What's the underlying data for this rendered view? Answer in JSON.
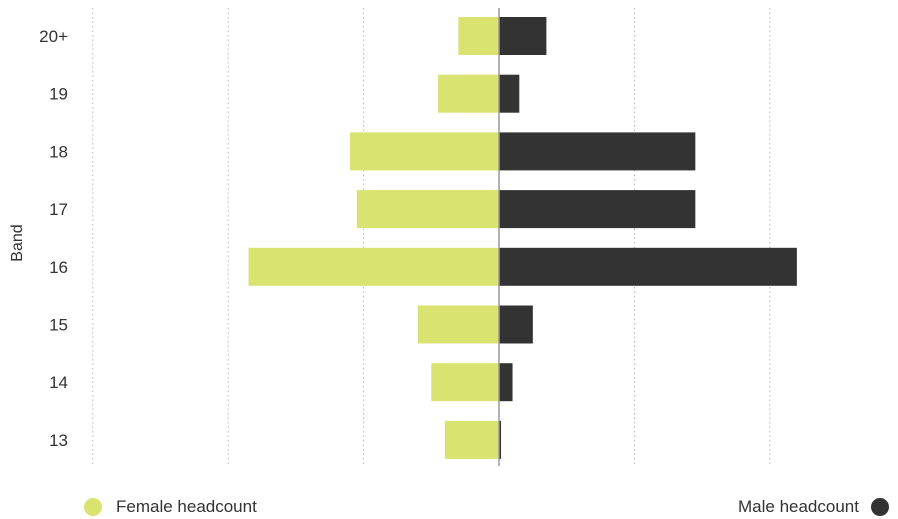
{
  "chart_data": {
    "type": "bar",
    "orientation": "horizontal-diverging",
    "categories": [
      "20+",
      "19",
      "18",
      "17",
      "16",
      "15",
      "14",
      "13"
    ],
    "series": [
      {
        "name": "Female headcount",
        "values": [
          6,
          9,
          22,
          21,
          37,
          12,
          10,
          8
        ],
        "color": "#d9e36f"
      },
      {
        "name": "Male headcount",
        "values": [
          7,
          3,
          29,
          29,
          44,
          5,
          2,
          0.3
        ],
        "color": "#333333"
      }
    ],
    "ylabel": "Band",
    "xlim": [
      -60,
      60
    ],
    "grid": true,
    "legend": "bottom"
  }
}
